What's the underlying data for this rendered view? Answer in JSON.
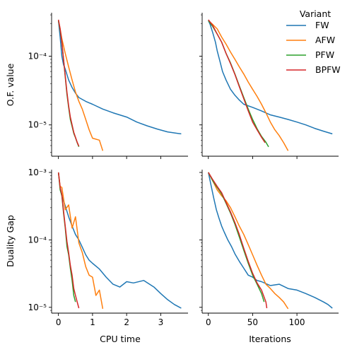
{
  "chart_data": {
    "type": "line",
    "layout": "2x2 facet grid, shared x within columns, shared y within rows",
    "legend": {
      "title": "Variant",
      "placement": "top-right",
      "entries": [
        "FW",
        "AFW",
        "PFW",
        "BPFW"
      ]
    },
    "colors": {
      "FW": "#1f77b4",
      "AFW": "#ff7f0e",
      "PFW": "#2ca02c",
      "BPFW": "#d62728"
    },
    "columns": [
      {
        "xlabel": "CPU time",
        "xlim": [
          -0.2,
          3.8
        ],
        "xticks": [
          0,
          1,
          2,
          3
        ],
        "xtick_labels": [
          "0",
          "1",
          "2",
          "3"
        ]
      },
      {
        "xlabel": "Iterations",
        "xlim": [
          -7,
          147
        ],
        "xticks": [
          0,
          50,
          100
        ],
        "xtick_labels": [
          "0",
          "50",
          "100"
        ]
      }
    ],
    "rows": [
      {
        "ylabel": "O.F. value",
        "yscale": "log",
        "ylim": [
          3.5e-06,
          0.00043
        ],
        "yticks": [
          1e-05,
          0.0001
        ],
        "ytick_labels": [
          "10⁻⁵",
          "10⁻⁴"
        ]
      },
      {
        "ylabel": "Duality Gap",
        "yscale": "log",
        "ylim": [
          8.2e-06,
          0.0011
        ],
        "yticks": [
          1e-05,
          0.0001,
          0.001
        ],
        "ytick_labels": [
          "10⁻⁵",
          "10⁻⁴",
          "10⁻³"
        ]
      }
    ],
    "panels": [
      {
        "row": 0,
        "col": 0,
        "series": [
          {
            "name": "FW",
            "x": [
              0,
              0.05,
              0.1,
              0.15,
              0.2,
              0.3,
              0.4,
              0.5,
              0.6,
              0.8,
              1.0,
              1.3,
              1.6,
              2.0,
              2.3,
              2.6,
              2.9,
              3.2,
              3.6
            ],
            "y": [
              0.00033,
              0.00019,
              0.0001,
              7.5e-05,
              6.5e-05,
              4.5e-05,
              3.5e-05,
              2.9e-05,
              2.5e-05,
              2.2e-05,
              2e-05,
              1.7e-05,
              1.5e-05,
              1.3e-05,
              1.1e-05,
              9.7e-06,
              8.7e-06,
              7.9e-06,
              7.4e-06
            ]
          },
          {
            "name": "AFW",
            "x": [
              0,
              0.05,
              0.1,
              0.2,
              0.3,
              0.4,
              0.5,
              0.6,
              0.7,
              0.8,
              0.9,
              1.0,
              1.2,
              1.3
            ],
            "y": [
              0.00033,
              0.00025,
              0.00018,
              0.00011,
              7e-05,
              4.5e-05,
              3e-05,
              2.2e-05,
              1.7e-05,
              1.2e-05,
              8.5e-06,
              6.4e-06,
              6e-06,
              4.2e-06
            ]
          },
          {
            "name": "PFW",
            "x": [
              0,
              0.05,
              0.1,
              0.15,
              0.2,
              0.25,
              0.3,
              0.35,
              0.4,
              0.45,
              0.5,
              0.55,
              0.6
            ],
            "y": [
              0.00033,
              0.00024,
              0.00016,
              9e-05,
              5e-05,
              2.8e-05,
              1.8e-05,
              1.2e-05,
              9.5e-06,
              7.5e-06,
              6.5e-06,
              5.5e-06,
              4.8e-06
            ]
          },
          {
            "name": "BPFW",
            "x": [
              0,
              0.05,
              0.1,
              0.15,
              0.2,
              0.25,
              0.3,
              0.35,
              0.4,
              0.45,
              0.5,
              0.55,
              0.6
            ],
            "y": [
              0.00034,
              0.00025,
              0.00016,
              9e-05,
              5.2e-05,
              3e-05,
              1.9e-05,
              1.3e-05,
              1e-05,
              7.8e-06,
              6.6e-06,
              5.6e-06,
              4.9e-06
            ]
          }
        ]
      },
      {
        "row": 0,
        "col": 1,
        "series": [
          {
            "name": "FW",
            "x": [
              0,
              2,
              5,
              8,
              10,
              13,
              16,
              20,
              25,
              30,
              35,
              40,
              50,
              60,
              70,
              80,
              90,
              100,
              110,
              120,
              130,
              140
            ],
            "y": [
              0.00033,
              0.00029,
              0.00022,
              0.00016,
              0.00012,
              8.5e-05,
              6e-05,
              4.5e-05,
              3.3e-05,
              2.7e-05,
              2.3e-05,
              2e-05,
              1.8e-05,
              1.6e-05,
              1.4e-05,
              1.3e-05,
              1.2e-05,
              1.1e-05,
              1e-05,
              8.9e-06,
              8.1e-06,
              7.4e-06
            ]
          },
          {
            "name": "AFW",
            "x": [
              0,
              5,
              10,
              15,
              20,
              25,
              30,
              35,
              40,
              45,
              50,
              55,
              60,
              65,
              70,
              75,
              80,
              85,
              90
            ],
            "y": [
              0.00033,
              0.00029,
              0.00025,
              0.00019,
              0.00015,
              0.000115,
              9e-05,
              7e-05,
              5.5e-05,
              4.2e-05,
              3.3e-05,
              2.6e-05,
              2e-05,
              1.5e-05,
              1.1e-05,
              8.5e-06,
              7e-06,
              5.5e-06,
              4.2e-06
            ]
          },
          {
            "name": "PFW",
            "x": [
              0,
              5,
              10,
              15,
              20,
              25,
              30,
              35,
              40,
              45,
              50,
              55,
              60,
              65,
              68
            ],
            "y": [
              0.00033,
              0.00027,
              0.00021,
              0.00016,
              0.00011,
              8e-05,
              5.5e-05,
              3.7e-05,
              2.5e-05,
              1.7e-05,
              1.2e-05,
              8.8e-06,
              6.8e-06,
              5.6e-06,
              4.8e-06
            ]
          },
          {
            "name": "BPFW",
            "x": [
              0,
              5,
              10,
              15,
              20,
              25,
              30,
              35,
              40,
              45,
              50,
              55,
              60,
              64
            ],
            "y": [
              0.00034,
              0.00028,
              0.00021,
              0.00016,
              0.00011,
              7.8e-05,
              5.4e-05,
              3.6e-05,
              2.4e-05,
              1.6e-05,
              1.1e-05,
              8.5e-06,
              6.6e-06,
              5.5e-06
            ]
          }
        ]
      },
      {
        "row": 1,
        "col": 0,
        "series": [
          {
            "name": "FW",
            "x": [
              0,
              0.05,
              0.1,
              0.2,
              0.3,
              0.4,
              0.5,
              0.6,
              0.7,
              0.8,
              0.9,
              1.0,
              1.2,
              1.4,
              1.6,
              1.8,
              2.0,
              2.2,
              2.5,
              2.8,
              3.0,
              3.2,
              3.4,
              3.6
            ],
            "y": [
              0.001,
              0.0006,
              0.00045,
              0.00032,
              0.00022,
              0.00016,
              0.00012,
              0.0001,
              7.8e-05,
              6e-05,
              5e-05,
              4.5e-05,
              3.7e-05,
              2.8e-05,
              2.2e-05,
              2e-05,
              2.4e-05,
              2.3e-05,
              2.5e-05,
              2e-05,
              1.6e-05,
              1.3e-05,
              1.1e-05,
              9.7e-06
            ]
          },
          {
            "name": "AFW",
            "x": [
              0,
              0.05,
              0.1,
              0.2,
              0.3,
              0.4,
              0.5,
              0.6,
              0.7,
              0.8,
              0.9,
              1.0,
              1.1,
              1.2,
              1.3
            ],
            "y": [
              0.001,
              0.00062,
              0.0006,
              0.00028,
              0.00033,
              0.00015,
              0.00022,
              9e-05,
              6.5e-05,
              4e-05,
              3e-05,
              2.8e-05,
              1.5e-05,
              1.8e-05,
              9.5e-06
            ]
          },
          {
            "name": "PFW",
            "x": [
              0,
              0.05,
              0.1,
              0.15,
              0.2,
              0.25,
              0.3,
              0.35,
              0.4,
              0.45,
              0.5
            ],
            "y": [
              0.001,
              0.00055,
              0.00045,
              0.00025,
              0.00015,
              8e-05,
              6e-05,
              3.8e-05,
              2.5e-05,
              1.5e-05,
              1.2e-05
            ]
          },
          {
            "name": "BPFW",
            "x": [
              0,
              0.05,
              0.1,
              0.15,
              0.2,
              0.25,
              0.3,
              0.35,
              0.4,
              0.45,
              0.5,
              0.55,
              0.6
            ],
            "y": [
              0.001,
              0.0006,
              0.00047,
              0.00027,
              0.00016,
              9.5e-05,
              6.5e-05,
              4.2e-05,
              3e-05,
              1.9e-05,
              1.5e-05,
              1.2e-05,
              9.7e-06
            ]
          }
        ]
      },
      {
        "row": 1,
        "col": 1,
        "series": [
          {
            "name": "FW",
            "x": [
              0,
              3,
              6,
              9,
              12,
              15,
              18,
              22,
              26,
              30,
              35,
              40,
              45,
              50,
              55,
              60,
              70,
              80,
              90,
              100,
              110,
              120,
              130,
              135,
              140
            ],
            "y": [
              0.001,
              0.00065,
              0.00042,
              0.00028,
              0.00021,
              0.00016,
              0.00013,
              0.0001,
              8e-05,
              6.2e-05,
              4.8e-05,
              3.8e-05,
              3e-05,
              2.8e-05,
              2.5e-05,
              2.4e-05,
              2.1e-05,
              2.2e-05,
              1.9e-05,
              1.8e-05,
              1.6e-05,
              1.4e-05,
              1.2e-05,
              1.1e-05,
              9.7e-06
            ]
          },
          {
            "name": "AFW",
            "x": [
              0,
              5,
              10,
              15,
              20,
              25,
              30,
              35,
              40,
              45,
              50,
              55,
              60,
              65,
              70,
              75,
              80,
              85,
              90
            ],
            "y": [
              0.001,
              0.00075,
              0.00055,
              0.00045,
              0.00038,
              0.0003,
              0.00022,
              0.00016,
              0.00012,
              8.5e-05,
              6e-05,
              4.2e-05,
              3e-05,
              2.2e-05,
              1.9e-05,
              1.6e-05,
              1.4e-05,
              1.2e-05,
              9.5e-06
            ]
          },
          {
            "name": "PFW",
            "x": [
              0,
              5,
              10,
              15,
              20,
              25,
              30,
              35,
              40,
              45,
              50,
              55,
              60,
              63
            ],
            "y": [
              0.001,
              0.00075,
              0.0006,
              0.00048,
              0.00035,
              0.00025,
              0.00017,
              0.00011,
              7e-05,
              4.5e-05,
              3e-05,
              2.2e-05,
              1.6e-05,
              1.2e-05
            ]
          },
          {
            "name": "BPFW",
            "x": [
              0,
              5,
              10,
              15,
              20,
              25,
              30,
              35,
              40,
              45,
              50,
              55,
              60,
              65,
              66
            ],
            "y": [
              0.001,
              0.00078,
              0.00062,
              0.0005,
              0.00036,
              0.00026,
              0.00018,
              0.00012,
              7.5e-05,
              4.8e-05,
              3.2e-05,
              2.3e-05,
              1.8e-05,
              1.2e-05,
              9.7e-06
            ]
          }
        ]
      }
    ]
  }
}
